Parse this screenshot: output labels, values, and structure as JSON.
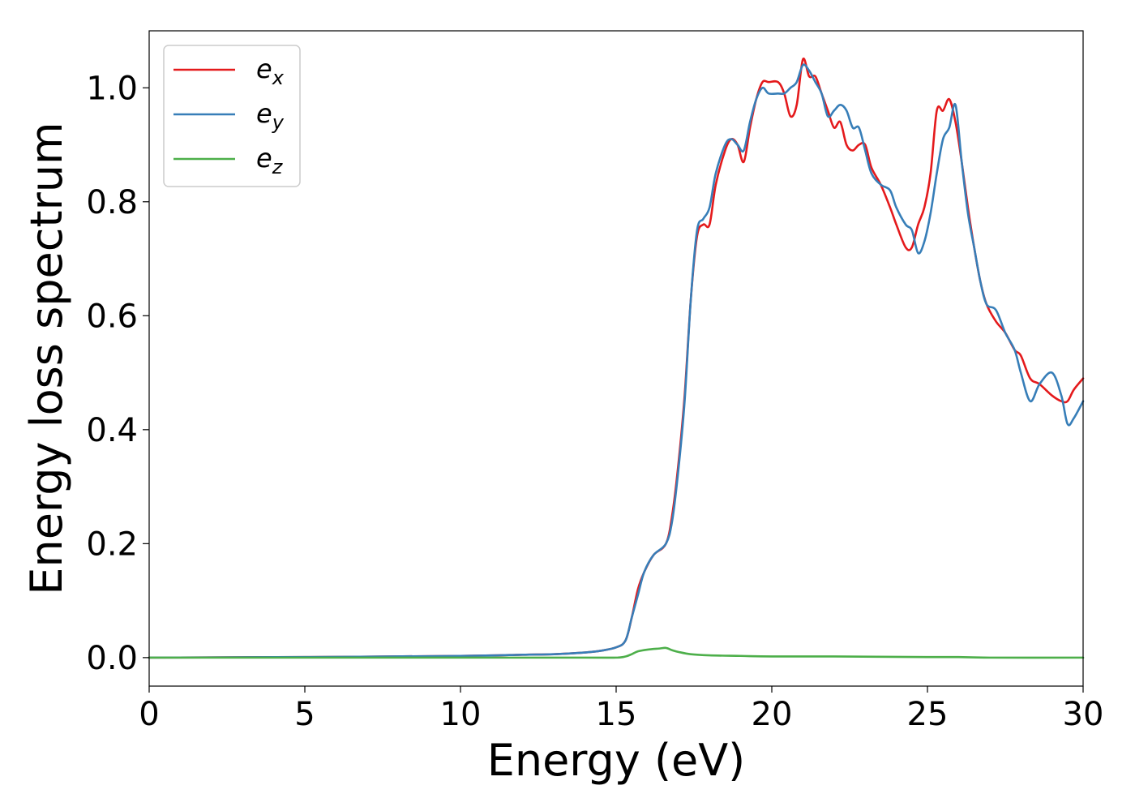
{
  "chart_data": {
    "type": "line",
    "xlabel": "Energy (eV)",
    "ylabel": "Energy loss spectrum",
    "xlim": [
      0,
      30
    ],
    "ylim": [
      -0.05,
      1.1
    ],
    "xticks": [
      0,
      5,
      10,
      15,
      20,
      25,
      30
    ],
    "yticks": [
      0.0,
      0.2,
      0.4,
      0.6,
      0.8,
      1.0
    ],
    "xtick_labels": [
      "0",
      "5",
      "10",
      "15",
      "20",
      "25",
      "30"
    ],
    "ytick_labels": [
      "0.0",
      "0.2",
      "0.4",
      "0.6",
      "0.8",
      "1.0"
    ],
    "grid": false,
    "legend_position": "top-left",
    "series": [
      {
        "name": "e",
        "subscript": "x",
        "color": "#e41a1c",
        "x": [
          0,
          5,
          10,
          12,
          13,
          14,
          14.5,
          15,
          15.3,
          15.5,
          15.7,
          15.9,
          16.2,
          16.6,
          16.8,
          17.0,
          17.2,
          17.4,
          17.6,
          17.8,
          18.0,
          18.2,
          18.5,
          18.7,
          18.9,
          19.1,
          19.3,
          19.5,
          19.7,
          19.9,
          20.2,
          20.4,
          20.6,
          20.8,
          21.0,
          21.2,
          21.4,
          21.6,
          21.8,
          22.0,
          22.2,
          22.4,
          22.6,
          22.8,
          23.0,
          23.2,
          23.5,
          23.8,
          24.0,
          24.3,
          24.5,
          24.7,
          24.9,
          25.1,
          25.3,
          25.5,
          25.7,
          25.9,
          26.1,
          26.3,
          26.5,
          26.7,
          26.9,
          27.2,
          27.5,
          27.8,
          28.0,
          28.3,
          28.6,
          29.0,
          29.3,
          29.5,
          29.7,
          30.0
        ],
        "y": [
          0.0,
          0.001,
          0.003,
          0.005,
          0.006,
          0.009,
          0.012,
          0.018,
          0.03,
          0.07,
          0.12,
          0.15,
          0.18,
          0.2,
          0.25,
          0.34,
          0.46,
          0.63,
          0.74,
          0.76,
          0.76,
          0.83,
          0.89,
          0.91,
          0.9,
          0.87,
          0.93,
          0.98,
          1.01,
          1.01,
          1.01,
          0.99,
          0.95,
          0.97,
          1.05,
          1.02,
          1.02,
          0.99,
          0.96,
          0.93,
          0.94,
          0.9,
          0.89,
          0.9,
          0.9,
          0.86,
          0.83,
          0.79,
          0.76,
          0.72,
          0.72,
          0.76,
          0.79,
          0.85,
          0.96,
          0.96,
          0.98,
          0.94,
          0.87,
          0.79,
          0.72,
          0.66,
          0.62,
          0.59,
          0.57,
          0.54,
          0.53,
          0.49,
          0.48,
          0.46,
          0.45,
          0.45,
          0.47,
          0.49
        ]
      },
      {
        "name": "e",
        "subscript": "y",
        "color": "#377eb8",
        "x": [
          0,
          5,
          10,
          12,
          13,
          14,
          14.5,
          15,
          15.3,
          15.5,
          15.7,
          15.9,
          16.2,
          16.6,
          16.8,
          17.0,
          17.2,
          17.4,
          17.6,
          17.8,
          18.0,
          18.2,
          18.5,
          18.7,
          18.9,
          19.1,
          19.3,
          19.5,
          19.7,
          19.9,
          20.2,
          20.4,
          20.6,
          20.8,
          21.0,
          21.2,
          21.4,
          21.6,
          21.8,
          22.0,
          22.2,
          22.4,
          22.6,
          22.8,
          23.0,
          23.2,
          23.5,
          23.8,
          24.0,
          24.3,
          24.5,
          24.7,
          24.9,
          25.1,
          25.3,
          25.5,
          25.7,
          25.9,
          26.1,
          26.3,
          26.5,
          26.7,
          26.9,
          27.2,
          27.5,
          27.8,
          28.0,
          28.3,
          28.6,
          29.0,
          29.3,
          29.5,
          29.7,
          30.0
        ],
        "y": [
          0.0,
          0.001,
          0.003,
          0.005,
          0.006,
          0.009,
          0.012,
          0.018,
          0.03,
          0.07,
          0.11,
          0.15,
          0.18,
          0.2,
          0.24,
          0.33,
          0.45,
          0.63,
          0.75,
          0.77,
          0.79,
          0.85,
          0.9,
          0.91,
          0.9,
          0.89,
          0.94,
          0.98,
          1.0,
          0.99,
          0.99,
          0.99,
          1.0,
          1.01,
          1.04,
          1.03,
          1.01,
          0.99,
          0.95,
          0.96,
          0.97,
          0.96,
          0.93,
          0.93,
          0.89,
          0.85,
          0.83,
          0.82,
          0.79,
          0.76,
          0.75,
          0.71,
          0.73,
          0.78,
          0.85,
          0.91,
          0.93,
          0.97,
          0.87,
          0.78,
          0.72,
          0.66,
          0.62,
          0.61,
          0.57,
          0.54,
          0.5,
          0.45,
          0.48,
          0.5,
          0.46,
          0.41,
          0.42,
          0.45
        ]
      },
      {
        "name": "e",
        "subscript": "z",
        "color": "#4daf4a",
        "x": [
          0,
          5,
          10,
          14,
          15,
          15.3,
          15.5,
          15.7,
          16.0,
          16.4,
          16.6,
          16.8,
          17.0,
          17.4,
          18.0,
          19.0,
          20.0,
          22.0,
          25.0,
          26.0,
          27.0,
          30.0
        ],
        "y": [
          0.0,
          0.0,
          0.0,
          0.0,
          0.0,
          0.002,
          0.006,
          0.011,
          0.014,
          0.016,
          0.017,
          0.013,
          0.01,
          0.006,
          0.004,
          0.003,
          0.002,
          0.002,
          0.001,
          0.001,
          0.0,
          0.0
        ]
      }
    ]
  }
}
